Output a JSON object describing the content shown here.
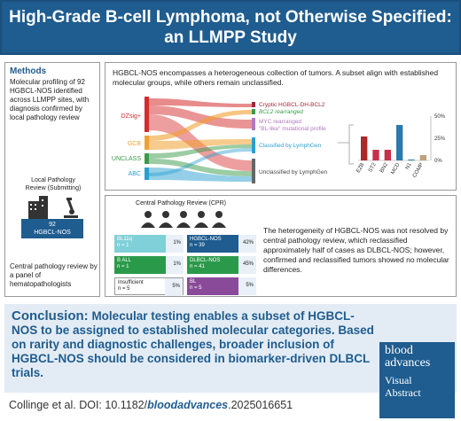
{
  "header": {
    "title_line1": "High-Grade B-cell Lymphoma, not Otherwise Specified:",
    "title_line2": "an LLMPP Study"
  },
  "methods": {
    "title": "Methods",
    "text": "Molecular profiling of 92 HGBCL-NOS identified across LLMPP sites, with diagnosis confirmed by local pathology review",
    "lpr_label_line1": "Local Pathology",
    "lpr_label_line2": "Review (Submitting)",
    "lpr_count": "92",
    "lpr_name": "HGBCL-NOS",
    "cpr_text": "Central pathology review by a panel of hematopathologists"
  },
  "panel1": {
    "text": "HGBCL-NOS encompasses a heterogeneous collection of tumors. A subset align with established molecular groups, while others remain unclassified.",
    "left_labels": [
      "DZsig+",
      "GCB",
      "UNCLASS",
      "ABC"
    ],
    "right_labels": [
      "Cryptic HGBCL-DH-BCL2",
      "BCL2 rearranged",
      "MYC rearranged",
      "\"BL-like\" mutational profile",
      "Classified by LymphGen",
      "Unclassified by LymphGen"
    ],
    "colors": {
      "dzsig": "#d62b2b",
      "gcb": "#f0a030",
      "unclass": "#3a9a4a",
      "abc": "#2aa0d0",
      "cryptic": "#9a2a3a",
      "bcl2": "#3a9a4a",
      "myc": "#b07ac0",
      "classified": "#2aa0d0",
      "unclassified": "#444444"
    }
  },
  "chart_data": {
    "type": "bar",
    "categories": [
      "EZB",
      "ST2",
      "BN2",
      "MCD",
      "N1",
      "COMP"
    ],
    "values": [
      27,
      12,
      12,
      40,
      1,
      6
    ],
    "colors": [
      "#a82a2a",
      "#c8304a",
      "#c8304a",
      "#2a7ab0",
      "#2a7ab0",
      "#c0a080"
    ],
    "ylim": [
      0,
      50
    ],
    "yticks": [
      "0%",
      "25%",
      "50%"
    ]
  },
  "panel2": {
    "cpr_title": "Central Pathology Review (CPR)",
    "cells": [
      {
        "label": "BL11q",
        "n": "n = 1",
        "pct": "1%",
        "color": "#7fd0d8"
      },
      {
        "label": "HGBCL-NOS",
        "n": "n = 39",
        "pct": "42%",
        "color": "#1f5c8f"
      },
      {
        "label": "B ALL",
        "n": "n = 1",
        "pct": "1%",
        "color": "#2a9a4a"
      },
      {
        "label": "DLBCL-NOS",
        "n": "n = 41",
        "pct": "45%",
        "color": "#2a9a4a"
      },
      {
        "label": "Insufficient",
        "n": "n = 5",
        "pct": "5%",
        "color": "#ffffff"
      },
      {
        "label": "BL",
        "n": "n = 5",
        "pct": "5%",
        "color": "#8a4a9a"
      }
    ],
    "text": "The heterogeneity of HGBCL-NOS was not resolved by central pathology review, which reclassified approximately half of cases as DLBCL-NOS; however, confirmed and reclassified tumors showed no molecular differences."
  },
  "conclusion": {
    "lead": "Conclusion:",
    "text": "Molecular testing enables a subset of HGBCL-NOS to be assigned to established molecular categories. Based on rarity and diagnostic challenges, broader inclusion of HGBCL-NOS should be considered in biomarker-driven DLBCL trials."
  },
  "logo": {
    "line1": "blood",
    "line2": "advances",
    "line3": "Visual",
    "line4": "Abstract"
  },
  "citation": {
    "authors": "Collinge et al. DOI: 10.1182/",
    "journal": "bloodadvances",
    "suffix": ".2025016651"
  }
}
